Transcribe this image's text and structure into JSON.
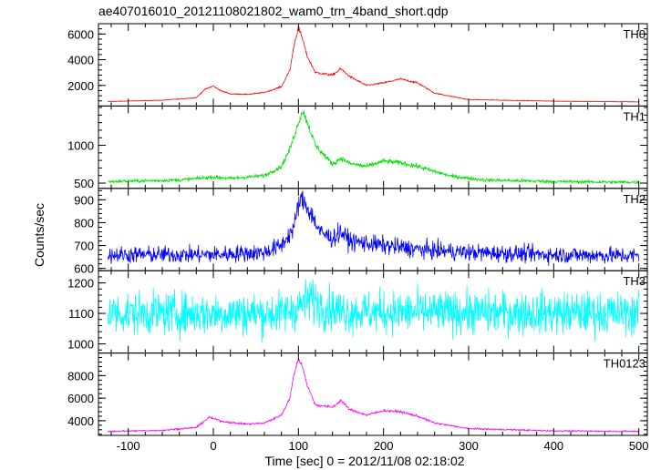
{
  "title": "ae407016010_20121108021802_wam0_trn_4band_short.qdp",
  "chart_data": {
    "type": "line",
    "title": "ae407016010_20121108021802_wam0_trn_4band_short.qdp",
    "xlabel": "Time [sec] 0 = 2012/11/08 02:18:02",
    "ylabel": "Counts/sec",
    "xlim": [
      -135,
      510
    ],
    "xticks": [
      -100,
      0,
      100,
      200,
      300,
      400,
      500
    ],
    "x_start": -124,
    "x_end": 500,
    "grid": false,
    "panels": [
      {
        "name": "TH0",
        "color": "#ff0000",
        "ylim": [
          400,
          6800
        ],
        "yticks": [
          2000,
          4000,
          6000
        ],
        "noise": 0.02,
        "values_x": [
          -124,
          -60,
          -20,
          -10,
          0,
          10,
          20,
          40,
          60,
          80,
          90,
          95,
          100,
          105,
          110,
          120,
          140,
          150,
          160,
          180,
          200,
          220,
          240,
          260,
          300,
          400,
          500
        ],
        "values_y": [
          750,
          850,
          1050,
          1700,
          1950,
          1550,
          1350,
          1300,
          1450,
          1900,
          3200,
          5200,
          6500,
          5600,
          4300,
          3000,
          2800,
          3300,
          2700,
          2000,
          2200,
          2500,
          2200,
          1400,
          900,
          780,
          720
        ]
      },
      {
        "name": "TH1",
        "color": "#00e000",
        "ylim": [
          430,
          1520
        ],
        "yticks": [
          500,
          1000
        ],
        "noise": 0.03,
        "values_x": [
          -124,
          -40,
          0,
          20,
          60,
          80,
          90,
          100,
          105,
          110,
          120,
          140,
          150,
          160,
          180,
          200,
          220,
          240,
          280,
          320,
          400,
          500
        ],
        "values_y": [
          520,
          540,
          580,
          560,
          600,
          720,
          950,
          1300,
          1460,
          1320,
          1000,
          750,
          830,
          760,
          720,
          790,
          770,
          720,
          590,
          540,
          520,
          510
        ]
      },
      {
        "name": "TH2",
        "color": "#0000ff",
        "ylim": [
          590,
          950
        ],
        "yticks": [
          600,
          700,
          800,
          900
        ],
        "noise": 0.04,
        "values_x": [
          -124,
          0,
          60,
          80,
          95,
          100,
          105,
          115,
          125,
          140,
          150,
          160,
          200,
          250,
          300,
          400,
          500
        ],
        "values_y": [
          660,
          660,
          670,
          700,
          780,
          880,
          900,
          840,
          760,
          730,
          760,
          720,
          700,
          680,
          670,
          660,
          655
        ]
      },
      {
        "name": "TH3",
        "color": "#00ffff",
        "ylim": [
          970,
          1240
        ],
        "yticks": [
          1000,
          1100,
          1200
        ],
        "noise": 0.045,
        "values_x": [
          -124,
          80,
          100,
          115,
          130,
          160,
          500
        ],
        "values_y": [
          1100,
          1100,
          1120,
          1150,
          1120,
          1105,
          1100
        ]
      },
      {
        "name": "TH0123",
        "color": "#ff00ff",
        "ylim": [
          2700,
          10000
        ],
        "yticks": [
          4000,
          6000,
          8000
        ],
        "noise": 0.015,
        "values_x": [
          -124,
          -60,
          -20,
          -5,
          10,
          25,
          40,
          60,
          80,
          90,
          95,
          100,
          105,
          110,
          120,
          140,
          150,
          160,
          180,
          200,
          220,
          240,
          260,
          300,
          400,
          500
        ],
        "values_y": [
          3050,
          3150,
          3400,
          4300,
          3950,
          3800,
          3700,
          3800,
          4500,
          6000,
          8200,
          9500,
          8800,
          7200,
          5400,
          5200,
          5800,
          5000,
          4500,
          4900,
          4800,
          4400,
          3800,
          3300,
          3100,
          3050
        ]
      }
    ]
  }
}
